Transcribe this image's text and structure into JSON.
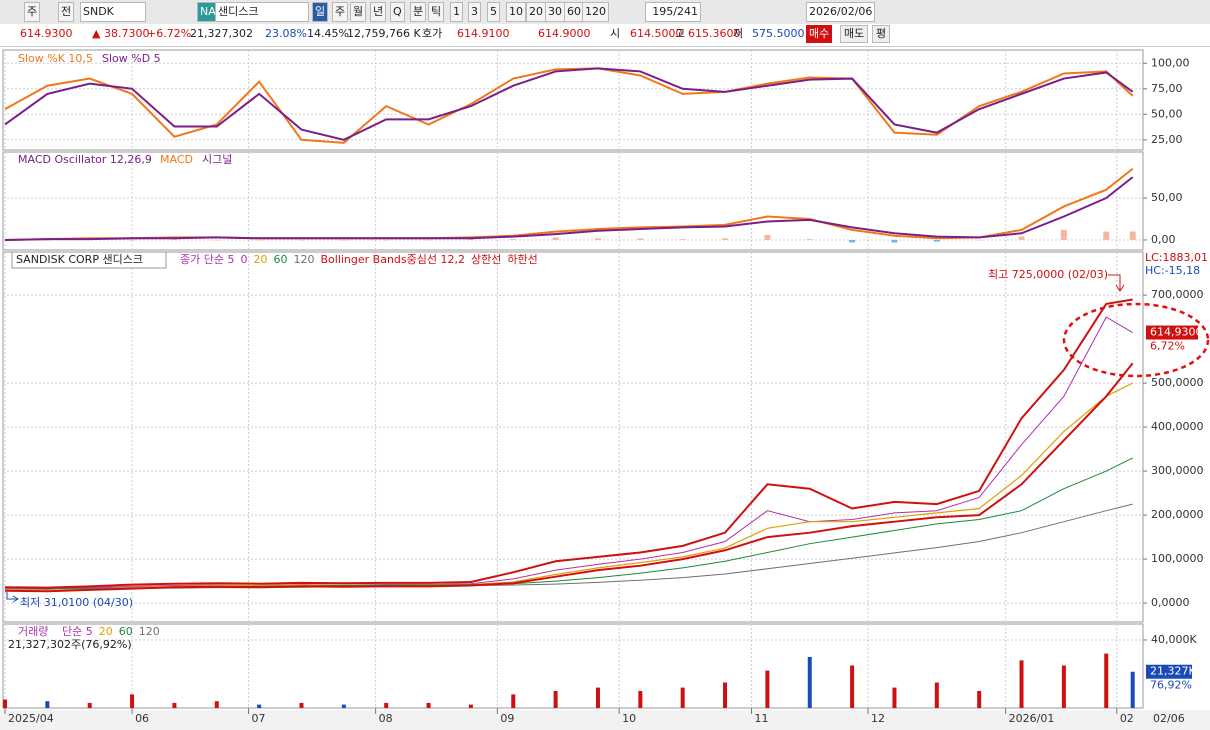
{
  "toolbar": {
    "items": [
      "주",
      "전",
      "SNDK",
      "NA",
      "샌디스크",
      "일",
      "주",
      "월",
      "년",
      "Q",
      "분",
      "틱",
      "1",
      "3",
      "5",
      "10",
      "20",
      "30",
      "60",
      "120",
      "195/241",
      "2026/02/06"
    ]
  },
  "quote": {
    "items": [
      "614.9300",
      "▲ 38.7300",
      "+6.72%",
      "21,327,302",
      "23.08%",
      "14.45%",
      "12,759,766 K",
      "호가",
      "614.9100",
      "614.9000",
      "시",
      "614.5000",
      "고",
      "615.3600",
      "저",
      "575.5000",
      "매수",
      "매도",
      "평"
    ]
  },
  "x_axis": {
    "xlim": [
      0,
      214
    ],
    "x": [
      0,
      8,
      16,
      24,
      32,
      40,
      48,
      56,
      64,
      72,
      80,
      88,
      96,
      104,
      112,
      120,
      128,
      136,
      144,
      152,
      160,
      168,
      176,
      184,
      192,
      200,
      208,
      213
    ],
    "xticks": [
      {
        "value": 0,
        "label": "2025/04"
      },
      {
        "value": 24,
        "label": "06"
      },
      {
        "value": 46,
        "label": "07"
      },
      {
        "value": 70,
        "label": "08"
      },
      {
        "value": 93,
        "label": "09"
      },
      {
        "value": 116,
        "label": "10"
      },
      {
        "value": 141,
        "label": "11"
      },
      {
        "value": 163,
        "label": "12"
      },
      {
        "value": 189,
        "label": "2026/01"
      },
      {
        "value": 210,
        "label": "02"
      }
    ],
    "end_label": "02/06"
  },
  "stochastic": {
    "ylim": [
      15,
      113
    ],
    "yticks": [
      {
        "value": 100,
        "label": "100,00"
      },
      {
        "value": 75,
        "label": "75,00"
      },
      {
        "value": 50,
        "label": "50,00"
      },
      {
        "value": 25,
        "label": "25,00"
      }
    ],
    "series": [
      {
        "name": "Slow %K 10,5",
        "color": "#f07818",
        "values": [
          55,
          78,
          85,
          70,
          28,
          40,
          82,
          25,
          22,
          58,
          40,
          60,
          85,
          94,
          95,
          88,
          70,
          72,
          80,
          86,
          85,
          32,
          30,
          58,
          72,
          90,
          92,
          68
        ]
      },
      {
        "name": "Slow %D 5",
        "color": "#7a1f8a",
        "values": [
          40,
          70,
          80,
          75,
          38,
          38,
          70,
          35,
          25,
          45,
          45,
          58,
          78,
          92,
          95,
          92,
          75,
          72,
          78,
          84,
          85,
          40,
          32,
          55,
          70,
          85,
          91,
          72
        ]
      }
    ]
  },
  "macd": {
    "title": "MACD Oscillator 12,26,9",
    "ylim": [
      -12,
      105
    ],
    "yticks": [
      {
        "value": 50,
        "label": "50,00"
      },
      {
        "value": 0,
        "label": "0,00"
      }
    ],
    "series": [
      {
        "name": "MACD",
        "color": "#f07818",
        "values": [
          0,
          1,
          2,
          2,
          3,
          3,
          2,
          2,
          2,
          2,
          2,
          3,
          5,
          10,
          13,
          15,
          16,
          18,
          28,
          25,
          12,
          5,
          2,
          3,
          12,
          40,
          60,
          85
        ]
      },
      {
        "name": "시그널",
        "color": "#7a1f8a",
        "values": [
          0,
          1,
          1,
          2,
          2,
          3,
          2,
          2,
          2,
          2,
          2,
          2,
          4,
          7,
          11,
          13,
          15,
          16,
          22,
          24,
          15,
          8,
          4,
          3,
          8,
          28,
          50,
          75
        ]
      }
    ],
    "oscillator": {
      "color": "#f4b8a0",
      "negative_color": "#6bb8e8",
      "values": [
        0,
        0,
        1,
        0,
        1,
        0,
        0,
        0,
        0,
        0,
        0,
        1,
        1,
        3,
        2,
        2,
        1,
        2,
        6,
        1,
        -3,
        -3,
        -2,
        0,
        4,
        12,
        10,
        10
      ]
    }
  },
  "price": {
    "title": "SANDISK CORP 샌디스크",
    "ylim": [
      -43,
      798
    ],
    "yticks": [
      {
        "value": 700,
        "label": "700,0000"
      },
      {
        "value": 500,
        "label": "500,0000"
      },
      {
        "value": 400,
        "label": "400,0000"
      },
      {
        "value": 300,
        "label": "300,0000"
      },
      {
        "value": 200,
        "label": "200,0000"
      },
      {
        "value": 100,
        "label": "100,0000"
      },
      {
        "value": 0,
        "label": "0,0000"
      }
    ],
    "legend": [
      {
        "label": "종가 단순 5",
        "color": "#b030b0"
      },
      {
        "label": "0",
        "color": "#b030b0"
      },
      {
        "label": "20",
        "color": "#e0a000"
      },
      {
        "label": "60",
        "color": "#1a8a3a"
      },
      {
        "label": "120",
        "color": "#707070"
      },
      {
        "label": "Bollinger Bands중심선 12,2",
        "color": "#d01010"
      },
      {
        "label": "상한선",
        "color": "#d01010"
      },
      {
        "label": "하한선",
        "color": "#d01010"
      }
    ],
    "lines": [
      {
        "color": "#b030b0",
        "width": 1,
        "values": [
          32,
          31,
          35,
          38,
          40,
          41,
          40,
          42,
          41,
          42,
          42,
          44,
          55,
          75,
          88,
          100,
          115,
          140,
          210,
          185,
          190,
          205,
          210,
          240,
          360,
          470,
          650,
          614.93
        ]
      },
      {
        "color": "#e0a000",
        "width": 1.2,
        "values": [
          33,
          32,
          33,
          36,
          38,
          40,
          40,
          41,
          41,
          41,
          42,
          42,
          48,
          65,
          80,
          92,
          105,
          125,
          170,
          185,
          185,
          195,
          205,
          215,
          290,
          390,
          470,
          500
        ]
      },
      {
        "color": "#1a8a3a",
        "width": 1,
        "values": [
          34,
          33,
          33,
          34,
          35,
          37,
          38,
          39,
          40,
          41,
          41,
          42,
          44,
          50,
          58,
          68,
          80,
          95,
          115,
          135,
          150,
          165,
          180,
          190,
          210,
          260,
          300,
          330
        ]
      },
      {
        "color": "#707070",
        "width": 1,
        "values": [
          34,
          34,
          34,
          34,
          34,
          35,
          35,
          36,
          37,
          38,
          39,
          40,
          41,
          43,
          47,
          52,
          58,
          66,
          78,
          90,
          102,
          114,
          126,
          140,
          160,
          185,
          210,
          225
        ]
      },
      {
        "color": "#d01010",
        "width": 2,
        "values": [
          36,
          35,
          38,
          42,
          44,
          45,
          44,
          46,
          45,
          46,
          46,
          48,
          70,
          95,
          105,
          115,
          130,
          160,
          270,
          260,
          215,
          230,
          225,
          255,
          420,
          530,
          680,
          690
        ]
      },
      {
        "color": "#d01010",
        "width": 2,
        "values": [
          28,
          27,
          30,
          33,
          36,
          37,
          36,
          38,
          37,
          38,
          38,
          40,
          45,
          60,
          75,
          85,
          100,
          120,
          150,
          160,
          175,
          185,
          195,
          200,
          270,
          370,
          470,
          545
        ]
      }
    ],
    "high_label": "최고 725,0000 (02/03)",
    "low_label": "최저 31,0100 (04/30)",
    "last_price": {
      "value": 614.93,
      "label": "614,9300"
    },
    "change_label": "6,72%",
    "lc": "LC:1883,01",
    "hc": "HC:-15,18"
  },
  "volume": {
    "title": "거래량",
    "legend": [
      {
        "label": "단순 5",
        "color": "#b030b0"
      },
      {
        "label": "20",
        "color": "#e0a000"
      },
      {
        "label": "60",
        "color": "#1a8a3a"
      },
      {
        "label": "120",
        "color": "#707070"
      }
    ],
    "info": "21,327,302주(76,92%)",
    "ylim": [
      0,
      49400
    ],
    "yticks": [
      {
        "value": 40000,
        "label": "40,000K"
      }
    ],
    "values": [
      5000,
      4000,
      3000,
      8000,
      3000,
      4000,
      2000,
      3000,
      2000,
      3000,
      3000,
      2000,
      8000,
      10000,
      12000,
      10000,
      12000,
      15000,
      22000,
      30000,
      25000,
      12000,
      15000,
      10000,
      28000,
      25000,
      32000,
      21327
    ],
    "last_value": {
      "value": 21327,
      "label": "21,327K"
    },
    "last_pct": "76,92%"
  }
}
